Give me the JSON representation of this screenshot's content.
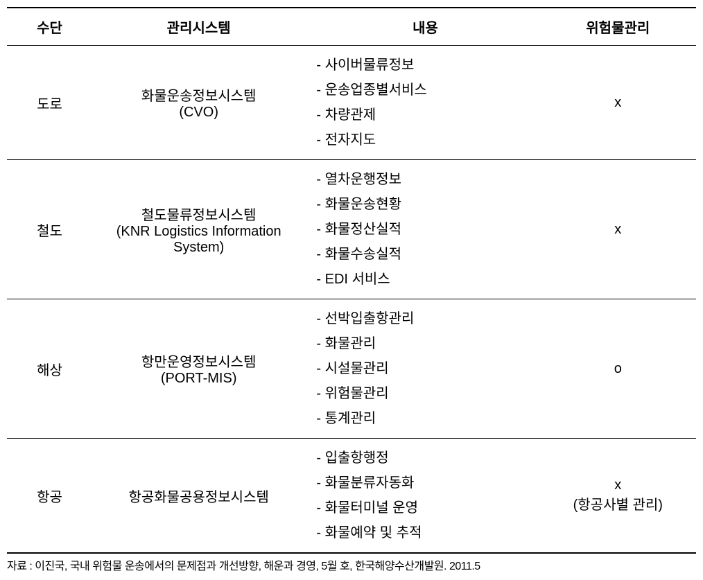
{
  "headers": {
    "means": "수단",
    "system": "관리시스템",
    "content": "내용",
    "risk": "위험물관리"
  },
  "rows": [
    {
      "means": "도로",
      "system_line1": "화물운송정보시스템",
      "system_line2": "(CVO)",
      "content_items": [
        "사이버물류정보",
        "운송업종별서비스",
        "차량관제",
        "전자지도"
      ],
      "risk_line1": "x",
      "risk_line2": ""
    },
    {
      "means": "철도",
      "system_line1": "철도물류정보시스템",
      "system_line2": "(KNR Logistics Information System)",
      "content_items": [
        "열차운행정보",
        "화물운송현황",
        "화물정산실적",
        "화물수송실적",
        "EDI 서비스"
      ],
      "risk_line1": "x",
      "risk_line2": ""
    },
    {
      "means": "해상",
      "system_line1": "항만운영정보시스템",
      "system_line2": "(PORT-MIS)",
      "content_items": [
        "선박입출항관리",
        "화물관리",
        "시설물관리",
        "위험물관리",
        "통계관리"
      ],
      "risk_line1": "o",
      "risk_line2": ""
    },
    {
      "means": "항공",
      "system_line1": "항공화물공용정보시스템",
      "system_line2": "",
      "content_items": [
        "입출항행정",
        "화물분류자동화",
        "화물터미널 운영",
        "화물예약 및 추적"
      ],
      "risk_line1": "x",
      "risk_line2": "(항공사별 관리)"
    }
  ],
  "source": "자료 : 이진국, 국내 위험물 운송에서의 문제점과 개선방향, 해운과 경영, 5월 호, 한국해양수산개발원. 2011.5",
  "styling": {
    "font_family": "Malgun Gothic",
    "header_font_size": 20,
    "body_font_size": 20,
    "source_font_size": 16,
    "border_color": "#000000",
    "background_color": "#ffffff",
    "top_border_width": 2,
    "header_border_width": 1.5,
    "row_border_width": 1,
    "bottom_border_width": 2,
    "column_widths": {
      "means": 120,
      "system": 300,
      "content": 330,
      "risk": 220
    },
    "bullet_prefix": "- "
  }
}
